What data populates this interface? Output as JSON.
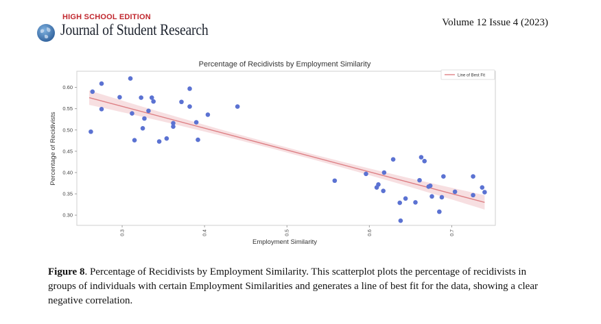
{
  "header": {
    "edition": "HIGH SCHOOL EDITION",
    "journal": "Journal of Student Research",
    "volume": "Volume 12 Issue 4 (2023)",
    "logo_icon": "globe-icon"
  },
  "chart_data": {
    "type": "scatter",
    "title": "Percentage of Recidivists by Employment Similarity",
    "xlabel": "Employment Similarity",
    "ylabel": "Percentage of Recidivists",
    "xlim": [
      0.245,
      0.753
    ],
    "ylim": [
      0.276,
      0.638
    ],
    "x_ticks": [
      0.3,
      0.4,
      0.5,
      0.6,
      0.7
    ],
    "x_tick_labels": [
      "0.3",
      "0.4",
      "0.5",
      "0.6",
      "0.7"
    ],
    "y_ticks": [
      0.3,
      0.35,
      0.4,
      0.45,
      0.5,
      0.55,
      0.6
    ],
    "y_tick_labels": [
      "0.30",
      "0.35",
      "0.40",
      "0.45",
      "0.50",
      "0.55",
      "0.60"
    ],
    "grid": false,
    "legend": {
      "position": "top-right",
      "entries": [
        "Line of Best Fit"
      ]
    },
    "colors": {
      "points": "#5b72d2",
      "fit_line": "#dd7f84",
      "band": "#f6d9dc"
    },
    "fit_line": {
      "name": "Line of Best Fit",
      "x": [
        0.26,
        0.74
      ],
      "y": [
        0.576,
        0.33
      ],
      "band_halfwidth_ends": 0.017,
      "band_halfwidth_center": 0.006
    },
    "points": [
      {
        "x": 0.262,
        "y": 0.496
      },
      {
        "x": 0.264,
        "y": 0.59
      },
      {
        "x": 0.275,
        "y": 0.609
      },
      {
        "x": 0.275,
        "y": 0.549
      },
      {
        "x": 0.297,
        "y": 0.577
      },
      {
        "x": 0.31,
        "y": 0.621
      },
      {
        "x": 0.312,
        "y": 0.539
      },
      {
        "x": 0.315,
        "y": 0.476
      },
      {
        "x": 0.323,
        "y": 0.576
      },
      {
        "x": 0.325,
        "y": 0.504
      },
      {
        "x": 0.327,
        "y": 0.527
      },
      {
        "x": 0.332,
        "y": 0.545
      },
      {
        "x": 0.336,
        "y": 0.576
      },
      {
        "x": 0.338,
        "y": 0.567
      },
      {
        "x": 0.345,
        "y": 0.473
      },
      {
        "x": 0.354,
        "y": 0.48
      },
      {
        "x": 0.362,
        "y": 0.516
      },
      {
        "x": 0.362,
        "y": 0.508
      },
      {
        "x": 0.372,
        "y": 0.566
      },
      {
        "x": 0.382,
        "y": 0.597
      },
      {
        "x": 0.382,
        "y": 0.555
      },
      {
        "x": 0.39,
        "y": 0.518
      },
      {
        "x": 0.392,
        "y": 0.477
      },
      {
        "x": 0.404,
        "y": 0.536
      },
      {
        "x": 0.44,
        "y": 0.555
      },
      {
        "x": 0.558,
        "y": 0.381
      },
      {
        "x": 0.596,
        "y": 0.397
      },
      {
        "x": 0.609,
        "y": 0.365
      },
      {
        "x": 0.611,
        "y": 0.372
      },
      {
        "x": 0.617,
        "y": 0.357
      },
      {
        "x": 0.618,
        "y": 0.4
      },
      {
        "x": 0.629,
        "y": 0.431
      },
      {
        "x": 0.637,
        "y": 0.329
      },
      {
        "x": 0.638,
        "y": 0.287
      },
      {
        "x": 0.644,
        "y": 0.339
      },
      {
        "x": 0.656,
        "y": 0.33
      },
      {
        "x": 0.661,
        "y": 0.382
      },
      {
        "x": 0.663,
        "y": 0.436
      },
      {
        "x": 0.667,
        "y": 0.427
      },
      {
        "x": 0.672,
        "y": 0.367
      },
      {
        "x": 0.674,
        "y": 0.369
      },
      {
        "x": 0.676,
        "y": 0.344
      },
      {
        "x": 0.685,
        "y": 0.308
      },
      {
        "x": 0.688,
        "y": 0.342
      },
      {
        "x": 0.69,
        "y": 0.391
      },
      {
        "x": 0.704,
        "y": 0.355
      },
      {
        "x": 0.726,
        "y": 0.391
      },
      {
        "x": 0.726,
        "y": 0.347
      },
      {
        "x": 0.737,
        "y": 0.365
      },
      {
        "x": 0.74,
        "y": 0.354
      }
    ]
  },
  "caption": {
    "label": "Figure 8",
    "text": ". Percentage of Recidivists by Employment Similarity. This scatterplot plots the percentage of recidi­vists in groups of individuals with certain Employment Similarities and generates a line of best fit for the data, showing a clear negative correlation."
  }
}
